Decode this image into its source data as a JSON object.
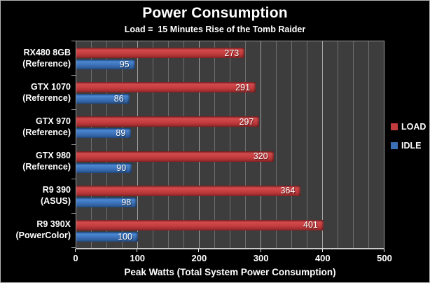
{
  "chart_data": {
    "type": "bar",
    "orientation": "horizontal",
    "title": "Power Consumption",
    "subtitle": "Load =  15 Minutes Rise of the Tomb Raider",
    "xlabel": "Peak Watts (Total System Power Consumption)",
    "xlim": [
      0,
      500
    ],
    "x_ticks": [
      0,
      100,
      200,
      300,
      400,
      500
    ],
    "grid_step": 25,
    "major_step": 100,
    "grid": "on",
    "legend_position": "right-outside",
    "categories": [
      [
        "RX480 8GB",
        "(Reference)"
      ],
      [
        "GTX 1070",
        "(Reference)"
      ],
      [
        "GTX 970",
        "(Reference)"
      ],
      [
        "GTX 980",
        "(Reference)"
      ],
      [
        "R9 390",
        "(ASUS)"
      ],
      [
        "R9 390X",
        "(PowerColor)"
      ]
    ],
    "series": [
      {
        "name": "LOAD",
        "color": "#c23b3d",
        "values": [
          273,
          291,
          297,
          320,
          364,
          401
        ]
      },
      {
        "name": "IDLE",
        "color": "#3a6fb5",
        "values": [
          95,
          86,
          89,
          90,
          98,
          100
        ]
      }
    ],
    "colors": {
      "background": "#000000",
      "plot_background": "#3d3d3d",
      "grid_minor": "#6e6e6e",
      "grid_major": "#a3a3a3",
      "text": "#ffffff"
    }
  }
}
